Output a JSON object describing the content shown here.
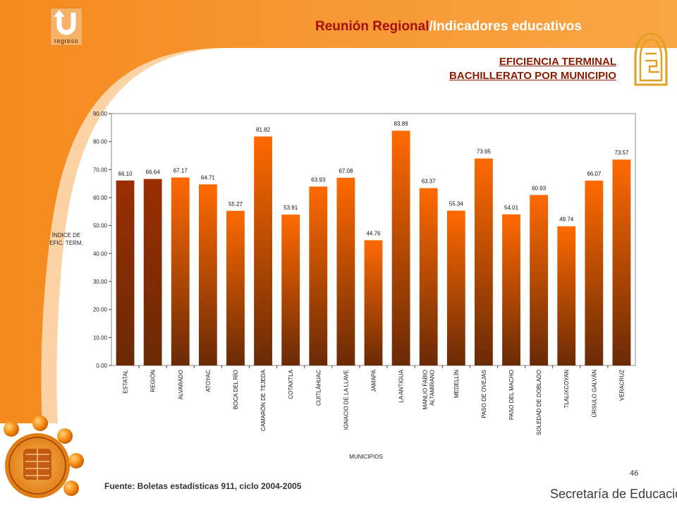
{
  "header": {
    "title_main": "Reunión Regional",
    "title_sep": "/",
    "title_sub": "Indicadores educativos",
    "back_button_label": "regreso"
  },
  "chart_title": {
    "line1": "EFICIENCIA TERMINAL",
    "line2": "BACHILLERATO POR MUNICIPIO"
  },
  "footer": {
    "source": "Fuente: Boletas estadísticas 911, ciclo 2004-2005",
    "page_number": "46",
    "organization": "Secretaría de Educación"
  },
  "colors": {
    "accent_orange": "#f7901e",
    "bar_dark": "#9a2e02",
    "bar_light": "#ff6a00",
    "bar_bottom": "#6a2a06",
    "title_red": "#a51010"
  },
  "chart_data": {
    "type": "bar",
    "ylabel_lines": [
      "ÍNDICE DE",
      "EFIC. TERM."
    ],
    "xlabel": "MUNICIPIOS",
    "ylim": [
      0,
      90
    ],
    "yticks": [
      "0.00",
      "10.00",
      "20.00",
      "30.00",
      "40.00",
      "50.00",
      "60.00",
      "70.00",
      "80.00",
      "90.00"
    ],
    "grid": false,
    "categories": [
      [
        "ESTATAL"
      ],
      [
        "REGIÓN"
      ],
      [
        "ALVARADO"
      ],
      [
        "ATOYAC"
      ],
      [
        "BOCA DEL RÍO"
      ],
      [
        "CAMARÓN DE TEJEDA"
      ],
      [
        "COTAXTLA"
      ],
      [
        "CUITLÁHUAC"
      ],
      [
        "IGNACIO DE LA LLAVE"
      ],
      [
        "JAMAPA"
      ],
      [
        "LA ANTIGUA"
      ],
      [
        "MANLIO FABIO",
        "ALTAMIRANO"
      ],
      [
        "MEDELLÍN"
      ],
      [
        "PASO DE OVEJAS"
      ],
      [
        "PASO DEL MACHO"
      ],
      [
        "SOLEDAD DE DOBLADO"
      ],
      [
        "TLALIXCOYAN"
      ],
      [
        "ÚRSULO GALVÁN"
      ],
      [
        "VERACRUZ"
      ]
    ],
    "values": [
      66.1,
      66.64,
      67.17,
      64.71,
      55.27,
      81.82,
      53.91,
      63.93,
      67.08,
      44.76,
      83.89,
      63.37,
      55.34,
      73.95,
      54.01,
      60.93,
      49.74,
      66.07,
      73.57
    ],
    "value_labels": [
      "66.10",
      "66.64",
      "67.17",
      "64.71",
      "55.27",
      "81.82",
      "53.91",
      "63.93",
      "67.08",
      "44.76",
      "83.89",
      "63.37",
      "55.34",
      "73.95",
      "54.01",
      "60.93",
      "49.74",
      "66.07",
      "73.57"
    ],
    "highlighted": [
      0,
      1
    ]
  }
}
